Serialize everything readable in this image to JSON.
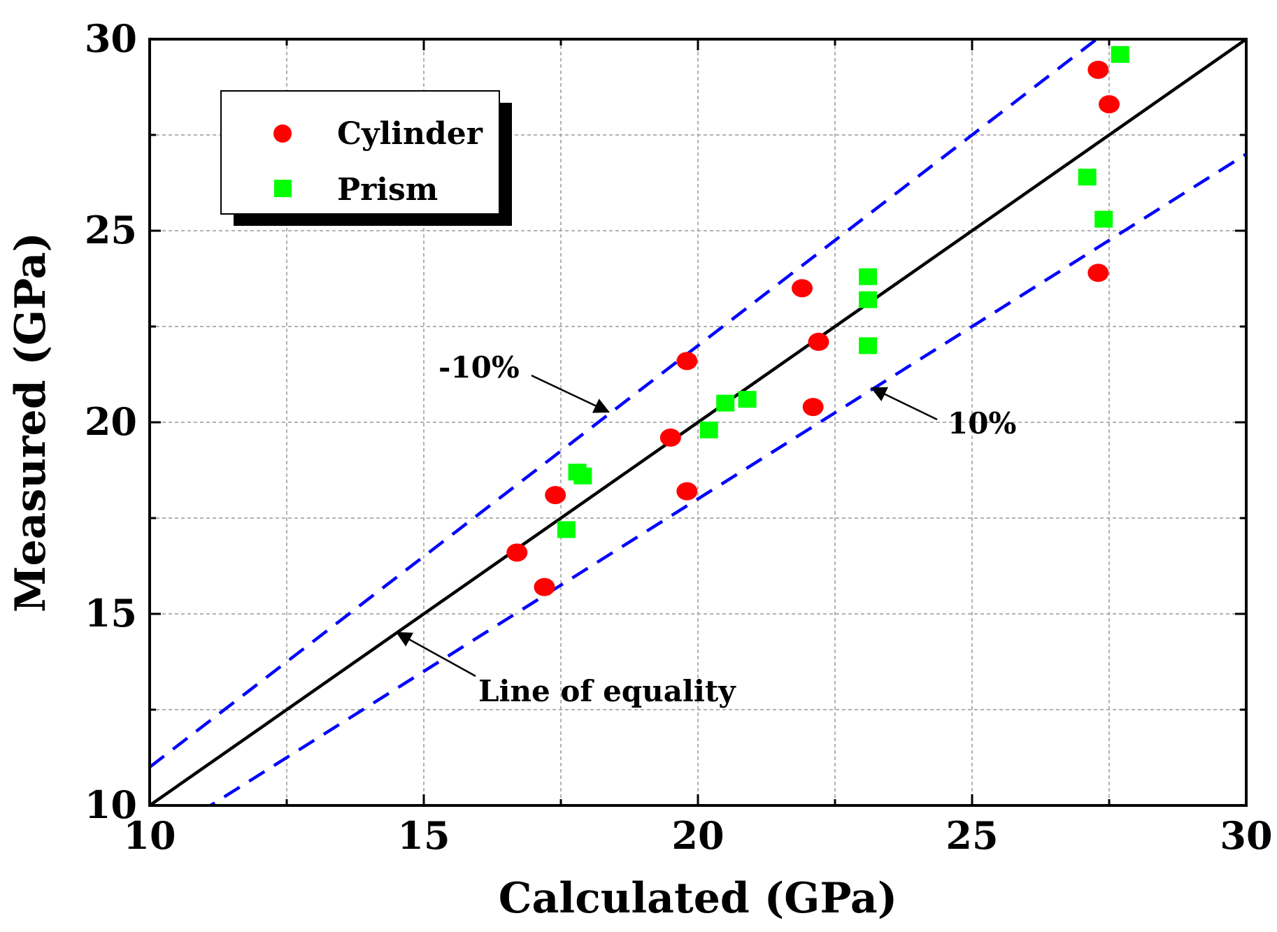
{
  "chart_data": {
    "type": "scatter",
    "title": "",
    "xlabel": "Calculated (GPa)",
    "ylabel": "Measured (GPa)",
    "xlim": [
      10,
      30
    ],
    "ylim": [
      10,
      30
    ],
    "x_ticks": [
      "10",
      "15",
      "20",
      "25",
      "30"
    ],
    "y_ticks": [
      "10",
      "15",
      "20",
      "25",
      "30"
    ],
    "grid": true,
    "legend_position": "top-left",
    "series": [
      {
        "name": "Cylinder",
        "marker": "circle",
        "color": "#ff0000",
        "points": [
          [
            16.7,
            16.6
          ],
          [
            17.2,
            15.7
          ],
          [
            17.4,
            18.1
          ],
          [
            19.5,
            19.6
          ],
          [
            19.8,
            21.6
          ],
          [
            19.8,
            18.2
          ],
          [
            21.9,
            23.5
          ],
          [
            22.2,
            22.1
          ],
          [
            22.1,
            20.4
          ],
          [
            27.3,
            29.2
          ],
          [
            27.5,
            28.3
          ],
          [
            27.3,
            23.9
          ]
        ]
      },
      {
        "name": "Prism",
        "marker": "square",
        "color": "#00ff00",
        "points": [
          [
            17.6,
            17.2
          ],
          [
            17.8,
            18.7
          ],
          [
            17.9,
            18.6
          ],
          [
            20.2,
            19.8
          ],
          [
            20.5,
            20.5
          ],
          [
            20.9,
            20.6
          ],
          [
            23.1,
            23.8
          ],
          [
            23.1,
            23.2
          ],
          [
            23.1,
            22.0
          ],
          [
            27.1,
            26.4
          ],
          [
            27.4,
            25.3
          ],
          [
            27.7,
            29.6
          ]
        ]
      }
    ],
    "reference_lines": [
      {
        "label": "Line of equality",
        "slope": 1.0,
        "color": "#000000",
        "style": "solid"
      },
      {
        "label": "-10%",
        "slope": 1.1,
        "color": "#0000ff",
        "style": "dashed"
      },
      {
        "label": "10%",
        "slope": 0.9,
        "color": "#0000ff",
        "style": "dashed"
      }
    ],
    "annotations": [
      "-10%",
      "10%",
      "Line of equality"
    ]
  }
}
